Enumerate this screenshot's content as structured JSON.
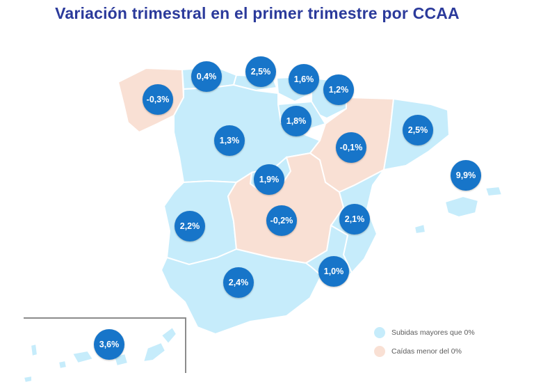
{
  "title": "Variación trimestral en el primer trimestre por CCAA",
  "colors": {
    "up": "#c6ecfb",
    "down": "#f9e0d4",
    "bubble": "#1775c9",
    "title": "#2b3a9b"
  },
  "regions": [
    {
      "name": "Galicia",
      "value": "-0,3%",
      "trend": "down"
    },
    {
      "name": "Asturias",
      "value": "0,4%",
      "trend": "up"
    },
    {
      "name": "Cantabria",
      "value": "2,5%",
      "trend": "up"
    },
    {
      "name": "País Vasco",
      "value": "1,6%",
      "trend": "up"
    },
    {
      "name": "Navarra",
      "value": "1,2%",
      "trend": "up"
    },
    {
      "name": "La Rioja",
      "value": "1,8%",
      "trend": "up"
    },
    {
      "name": "Aragón",
      "value": "-0,1%",
      "trend": "down"
    },
    {
      "name": "Cataluña",
      "value": "2,5%",
      "trend": "up"
    },
    {
      "name": "Castilla y León",
      "value": "1,3%",
      "trend": "up"
    },
    {
      "name": "Madrid",
      "value": "1,9%",
      "trend": "up"
    },
    {
      "name": "Baleares",
      "value": "9,9%",
      "trend": "up"
    },
    {
      "name": "Extremadura",
      "value": "2,2%",
      "trend": "up"
    },
    {
      "name": "Castilla-La Mancha",
      "value": "-0,2%",
      "trend": "down"
    },
    {
      "name": "Comunidad Valenciana",
      "value": "2,1%",
      "trend": "up"
    },
    {
      "name": "Murcia",
      "value": "1,0%",
      "trend": "up"
    },
    {
      "name": "Andalucía",
      "value": "2,4%",
      "trend": "up"
    },
    {
      "name": "Canarias",
      "value": "3,6%",
      "trend": "up"
    }
  ],
  "legend": {
    "up_label": "Subidas mayores que 0%",
    "down_label": "Caídas menor del 0%"
  }
}
